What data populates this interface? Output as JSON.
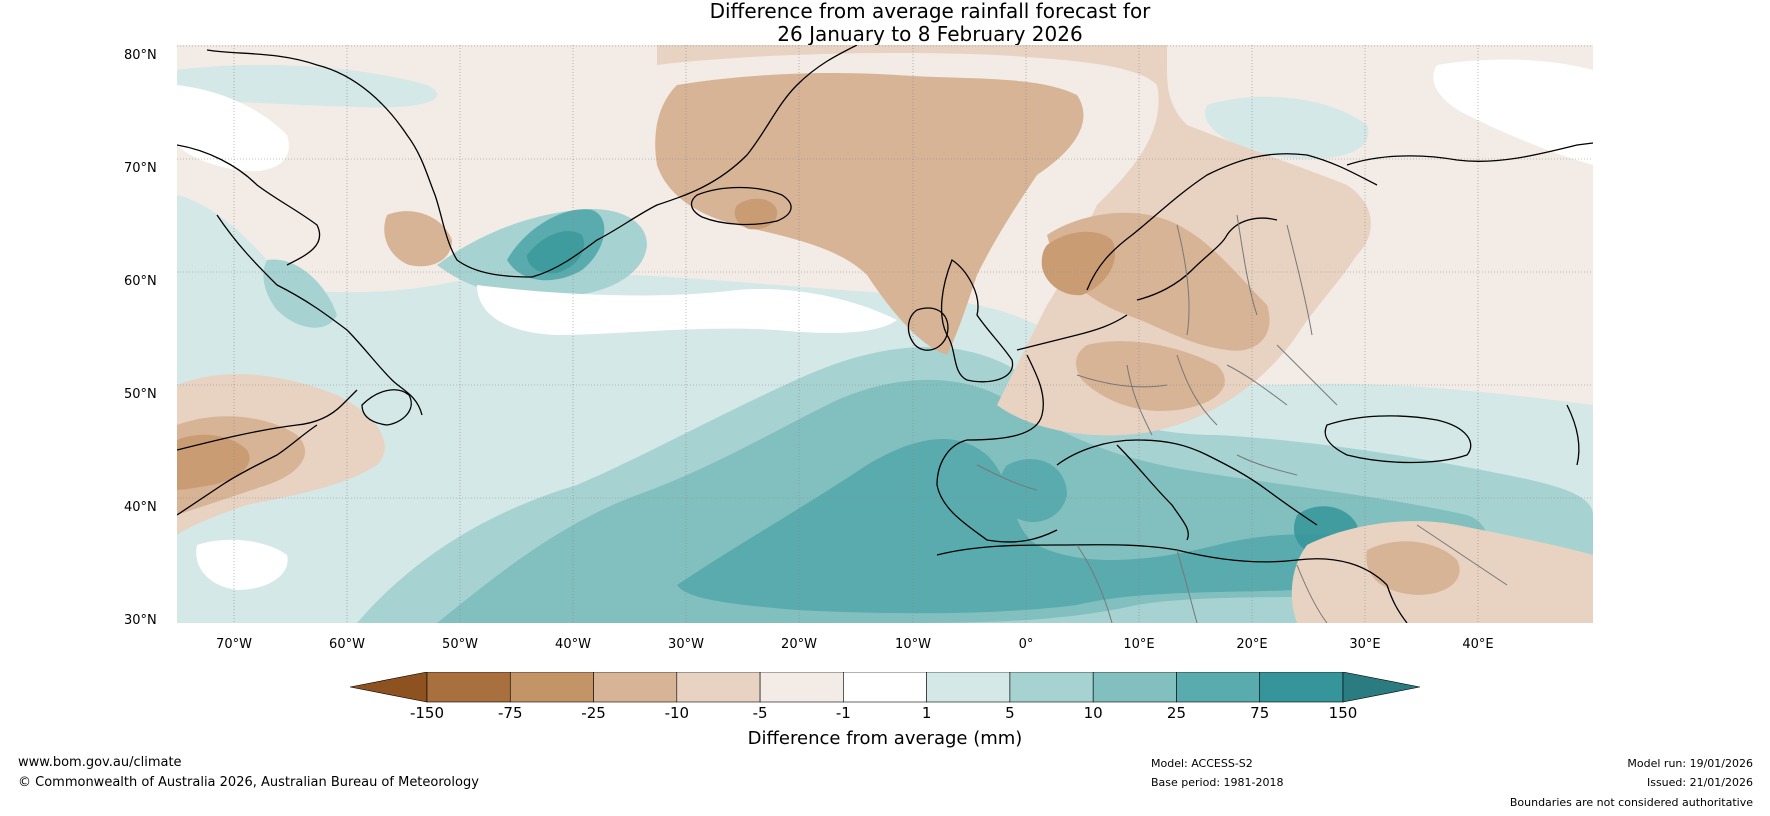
{
  "title": {
    "line1": "Difference from average rainfall forecast for",
    "line2": "26 January to 8 February 2026"
  },
  "map": {
    "lat_labels": [
      "80°N",
      "70°N",
      "60°N",
      "50°N",
      "40°N",
      "30°N"
    ],
    "lon_labels": [
      "70°W",
      "60°W",
      "50°W",
      "40°W",
      "30°W",
      "20°W",
      "10°W",
      "0°",
      "10°E",
      "20°E",
      "30°E",
      "40°E"
    ],
    "lat_range": [
      30,
      80
    ],
    "lon_range": [
      -75,
      50
    ],
    "grid": true,
    "colors": {
      "brown_strong": "#a8693a",
      "brown_mid": "#c99c74",
      "brown_light": "#d8b496",
      "brown_pale": "#e8d3c2",
      "brown_faint": "#f3ebe5",
      "white": "#ffffff",
      "teal_faint": "#d3e8e7",
      "teal_pale": "#a6d3d1",
      "teal_light": "#82c0bf",
      "teal_mid": "#5aabad",
      "teal_strong": "#36959a"
    }
  },
  "colorbar": {
    "ticks": [
      "-150",
      "-75",
      "-25",
      "-10",
      "-5",
      "-1",
      "1",
      "5",
      "10",
      "25",
      "75",
      "150"
    ],
    "colors": [
      "#8e5220",
      "#a86f3f",
      "#c39466",
      "#d8b496",
      "#e8d3c2",
      "#f3ebe5",
      "#ffffff",
      "#d3e8e7",
      "#a6d3d1",
      "#82c0bf",
      "#5aabad",
      "#36959a",
      "#2a7c80"
    ],
    "label": "Difference from average (mm)"
  },
  "footer": {
    "website": "www.bom.gov.au/climate",
    "copyright": "© Commonwealth of Australia 2026, Australian Bureau of Meteorology",
    "model": "Model: ACCESS-S2",
    "base_period": "Base period: 1981-2018",
    "model_run": "Model run: 19/01/2026",
    "issued": "Issued: 21/01/2026",
    "disclaimer": "Boundaries are not considered authoritative"
  }
}
